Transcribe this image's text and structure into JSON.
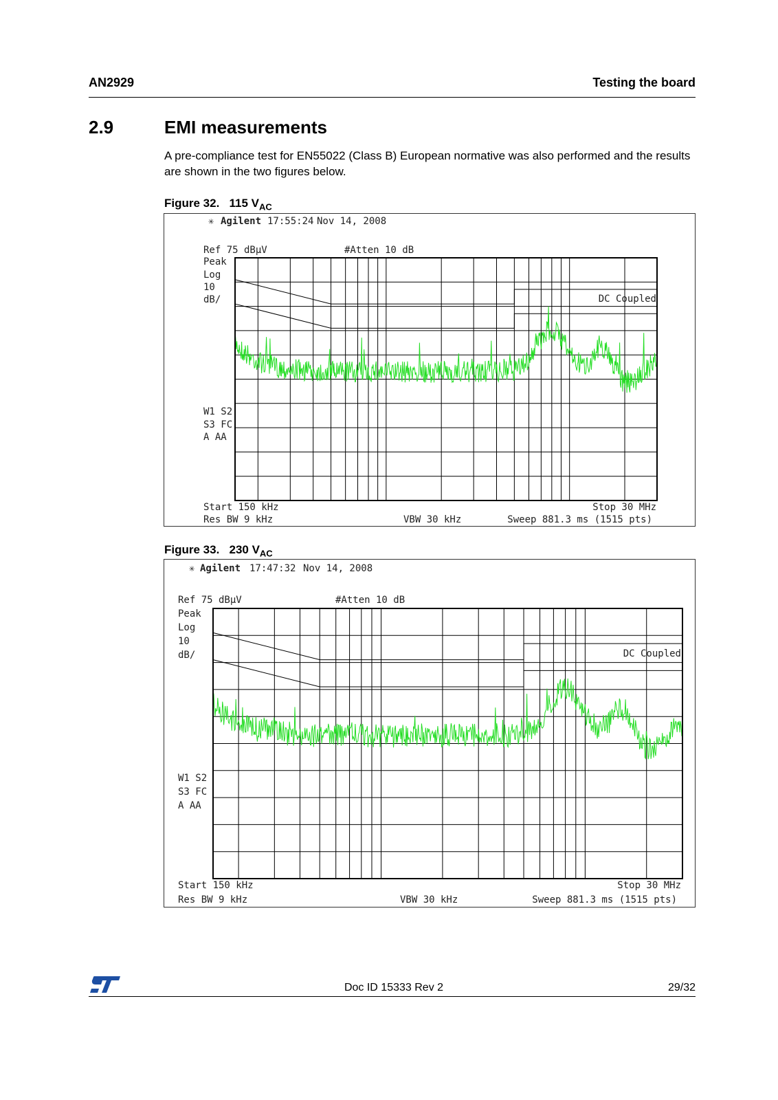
{
  "header": {
    "doc": "AN2929",
    "chapter": "Testing the board"
  },
  "section": {
    "number": "2.9",
    "title": "EMI measurements"
  },
  "paragraph": "A pre-compliance test for EN55022 (Class B) European normative was also performed and the results are shown in the two figures below.",
  "figures": [
    {
      "caption": "Figure 32.",
      "voltage": "115 V",
      "voltage_sub": "AC",
      "brand": "Agilent",
      "time": "17:55:24",
      "date": "Nov 14, 2008",
      "ref": "Ref 75 dBµV",
      "atten": "#Atten 10 dB",
      "mode": [
        "Peak",
        "Log",
        "10",
        "dB/"
      ],
      "coupling": "DC Coupled",
      "status": [
        "W1  S2",
        "S3  FC",
        "A   AA"
      ],
      "start": "Start 150 kHz",
      "stop": "Stop 30 MHz",
      "rbw": "Res BW 9 kHz",
      "vbw": "VBW 30 kHz",
      "sweep": "Sweep 881.3 ms (1515 pts)"
    },
    {
      "caption": "Figure 33.",
      "voltage": "230 V",
      "voltage_sub": "AC",
      "brand": "Agilent",
      "time": "17:47:32",
      "date": "Nov 14, 2008",
      "ref": "Ref 75 dBµV",
      "atten": "#Atten 10 dB",
      "mode": [
        "Peak",
        "Log",
        "10",
        "dB/"
      ],
      "coupling": "DC Coupled",
      "status": [
        "W1  S2",
        "S3  FC",
        "A   AA"
      ],
      "start": "Start 150 kHz",
      "stop": "Stop 30 MHz",
      "rbw": "Res BW 9 kHz",
      "vbw": "VBW 30 kHz",
      "sweep": "Sweep 881.3 ms (1515 pts)"
    }
  ],
  "footer": {
    "doc_id": "Doc ID 15333 Rev 2",
    "page": "29/32"
  }
}
